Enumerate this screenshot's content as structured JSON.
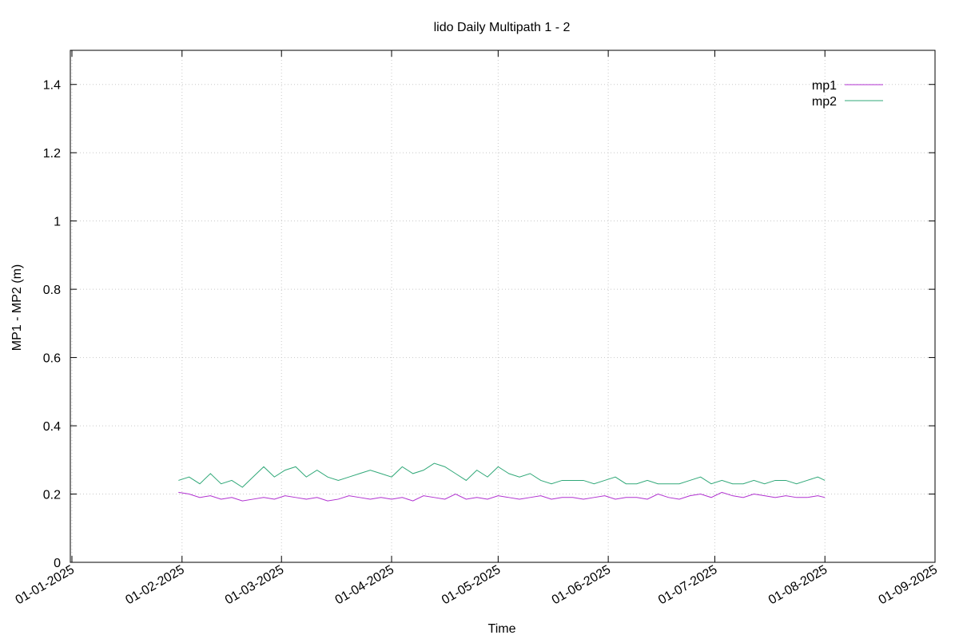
{
  "chart_data": {
    "type": "line",
    "title": "lido Daily Multipath 1 - 2",
    "xlabel": "Time",
    "ylabel": "MP1 - MP2 (m)",
    "x": [
      "2025-01-31",
      "2025-02-03",
      "2025-02-06",
      "2025-02-09",
      "2025-02-12",
      "2025-02-15",
      "2025-02-18",
      "2025-02-21",
      "2025-02-24",
      "2025-02-27",
      "2025-03-02",
      "2025-03-05",
      "2025-03-08",
      "2025-03-11",
      "2025-03-14",
      "2025-03-17",
      "2025-03-20",
      "2025-03-23",
      "2025-03-26",
      "2025-03-29",
      "2025-04-01",
      "2025-04-04",
      "2025-04-07",
      "2025-04-10",
      "2025-04-13",
      "2025-04-16",
      "2025-04-19",
      "2025-04-22",
      "2025-04-25",
      "2025-04-28",
      "2025-05-01",
      "2025-05-04",
      "2025-05-07",
      "2025-05-10",
      "2025-05-13",
      "2025-05-16",
      "2025-05-19",
      "2025-05-22",
      "2025-05-25",
      "2025-05-28",
      "2025-05-31",
      "2025-06-03",
      "2025-06-06",
      "2025-06-09",
      "2025-06-12",
      "2025-06-15",
      "2025-06-18",
      "2025-06-21",
      "2025-06-24",
      "2025-06-27",
      "2025-06-30",
      "2025-07-03",
      "2025-07-06",
      "2025-07-09",
      "2025-07-12",
      "2025-07-15",
      "2025-07-18",
      "2025-07-21",
      "2025-07-24",
      "2025-07-27",
      "2025-07-30",
      "2025-08-01"
    ],
    "series": [
      {
        "name": "mp1",
        "color": "#b030d0",
        "values": [
          0.205,
          0.2,
          0.19,
          0.195,
          0.185,
          0.19,
          0.18,
          0.185,
          0.19,
          0.185,
          0.195,
          0.19,
          0.185,
          0.19,
          0.18,
          0.185,
          0.195,
          0.19,
          0.185,
          0.19,
          0.185,
          0.19,
          0.18,
          0.195,
          0.19,
          0.185,
          0.2,
          0.185,
          0.19,
          0.185,
          0.195,
          0.19,
          0.185,
          0.19,
          0.195,
          0.185,
          0.19,
          0.19,
          0.185,
          0.19,
          0.195,
          0.185,
          0.19,
          0.19,
          0.185,
          0.2,
          0.19,
          0.185,
          0.195,
          0.2,
          0.19,
          0.205,
          0.195,
          0.19,
          0.2,
          0.195,
          0.19,
          0.195,
          0.19,
          0.19,
          0.195,
          0.19
        ]
      },
      {
        "name": "mp2",
        "color": "#30a878",
        "values": [
          0.24,
          0.25,
          0.23,
          0.26,
          0.23,
          0.24,
          0.22,
          0.25,
          0.28,
          0.25,
          0.27,
          0.28,
          0.25,
          0.27,
          0.25,
          0.24,
          0.25,
          0.26,
          0.27,
          0.26,
          0.25,
          0.28,
          0.26,
          0.27,
          0.29,
          0.28,
          0.26,
          0.24,
          0.27,
          0.25,
          0.28,
          0.26,
          0.25,
          0.26,
          0.24,
          0.23,
          0.24,
          0.24,
          0.24,
          0.23,
          0.24,
          0.25,
          0.23,
          0.23,
          0.24,
          0.23,
          0.23,
          0.23,
          0.24,
          0.25,
          0.23,
          0.24,
          0.23,
          0.23,
          0.24,
          0.23,
          0.24,
          0.24,
          0.23,
          0.24,
          0.25,
          0.24
        ]
      }
    ],
    "xlim": [
      "2025-01-01",
      "2025-09-01"
    ],
    "xticks": [
      {
        "value": "2025-01-01",
        "label": "01-01-2025"
      },
      {
        "value": "2025-02-01",
        "label": "01-02-2025"
      },
      {
        "value": "2025-03-01",
        "label": "01-03-2025"
      },
      {
        "value": "2025-04-01",
        "label": "01-04-2025"
      },
      {
        "value": "2025-05-01",
        "label": "01-05-2025"
      },
      {
        "value": "2025-06-01",
        "label": "01-06-2025"
      },
      {
        "value": "2025-07-01",
        "label": "01-07-2025"
      },
      {
        "value": "2025-08-01",
        "label": "01-08-2025"
      },
      {
        "value": "2025-09-01",
        "label": "01-09-2025"
      }
    ],
    "ylim": [
      0,
      1.5
    ],
    "yticks": [
      0,
      0.2,
      0.4,
      0.6,
      0.8,
      1,
      1.2,
      1.4
    ],
    "grid": true,
    "legend": "top-right",
    "xtick_color": "#ff0000"
  }
}
